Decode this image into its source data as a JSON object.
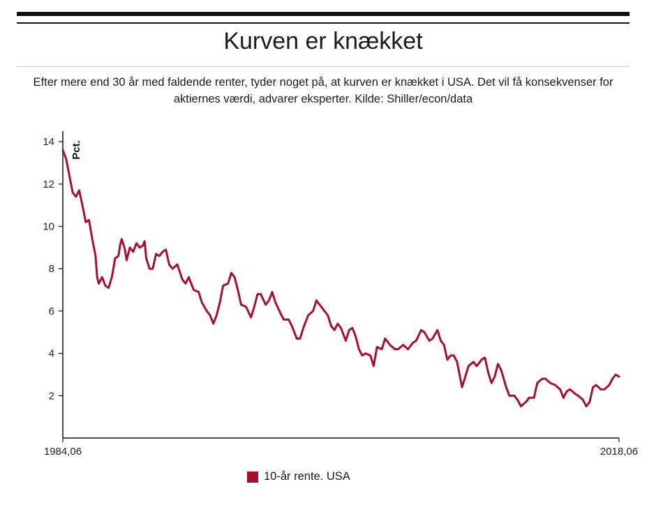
{
  "header": {
    "title": "Kurven er knækket",
    "subtitle": "Efter mere end 30 år med faldende renter, tyder noget på, at kurven er knækket i USA. Det vil få konsekvenser for aktiernes værdi, advarer eksperter. Kilde: Shiller/econ/data"
  },
  "colors": {
    "series": "#a6102e",
    "axis": "#111111"
  },
  "chart_data": {
    "type": "line",
    "title": "Kurven er knækket",
    "ylabel": "Pct.",
    "xlabel": "",
    "xlim": [
      1984.5,
      2018.5
    ],
    "ylim": [
      0,
      14.5
    ],
    "yticks": [
      2,
      4,
      6,
      8,
      10,
      12,
      14
    ],
    "xtick_labels": [
      {
        "x": 1984.5,
        "label": "1984,06"
      },
      {
        "x": 2018.5,
        "label": "2018,06"
      }
    ],
    "legend": "bottom-center",
    "series": [
      {
        "name": "10-år rente. USA",
        "points": [
          [
            1984.5,
            13.6
          ],
          [
            1984.7,
            13.2
          ],
          [
            1984.9,
            12.4
          ],
          [
            1985.1,
            11.6
          ],
          [
            1985.3,
            11.4
          ],
          [
            1985.5,
            11.7
          ],
          [
            1985.7,
            11.0
          ],
          [
            1985.9,
            10.2
          ],
          [
            1986.1,
            10.3
          ],
          [
            1986.3,
            9.4
          ],
          [
            1986.5,
            8.6
          ],
          [
            1986.6,
            7.6
          ],
          [
            1986.7,
            7.3
          ],
          [
            1986.9,
            7.6
          ],
          [
            1987.1,
            7.2
          ],
          [
            1987.3,
            7.1
          ],
          [
            1987.5,
            7.6
          ],
          [
            1987.7,
            8.5
          ],
          [
            1987.9,
            8.6
          ],
          [
            1988.0,
            9.1
          ],
          [
            1988.1,
            9.4
          ],
          [
            1988.3,
            8.9
          ],
          [
            1988.4,
            8.4
          ],
          [
            1988.6,
            9.0
          ],
          [
            1988.8,
            8.8
          ],
          [
            1989.0,
            9.2
          ],
          [
            1989.2,
            9.0
          ],
          [
            1989.4,
            9.1
          ],
          [
            1989.5,
            9.3
          ],
          [
            1989.6,
            8.5
          ],
          [
            1989.8,
            8.0
          ],
          [
            1990.0,
            8.0
          ],
          [
            1990.2,
            8.7
          ],
          [
            1990.4,
            8.6
          ],
          [
            1990.6,
            8.8
          ],
          [
            1990.8,
            8.9
          ],
          [
            1991.0,
            8.2
          ],
          [
            1991.2,
            8.0
          ],
          [
            1991.5,
            8.2
          ],
          [
            1991.8,
            7.5
          ],
          [
            1992.0,
            7.3
          ],
          [
            1992.2,
            7.6
          ],
          [
            1992.5,
            7.0
          ],
          [
            1992.8,
            6.9
          ],
          [
            1993.0,
            6.4
          ],
          [
            1993.3,
            6.0
          ],
          [
            1993.5,
            5.8
          ],
          [
            1993.7,
            5.4
          ],
          [
            1993.9,
            5.8
          ],
          [
            1994.1,
            6.4
          ],
          [
            1994.3,
            7.2
          ],
          [
            1994.6,
            7.3
          ],
          [
            1994.8,
            7.8
          ],
          [
            1995.0,
            7.6
          ],
          [
            1995.2,
            7.0
          ],
          [
            1995.4,
            6.3
          ],
          [
            1995.7,
            6.2
          ],
          [
            1996.0,
            5.7
          ],
          [
            1996.2,
            6.2
          ],
          [
            1996.4,
            6.8
          ],
          [
            1996.6,
            6.8
          ],
          [
            1996.9,
            6.3
          ],
          [
            1997.1,
            6.5
          ],
          [
            1997.3,
            6.9
          ],
          [
            1997.5,
            6.4
          ],
          [
            1997.8,
            5.9
          ],
          [
            1998.0,
            5.6
          ],
          [
            1998.3,
            5.6
          ],
          [
            1998.5,
            5.3
          ],
          [
            1998.8,
            4.7
          ],
          [
            1999.0,
            4.7
          ],
          [
            1999.2,
            5.2
          ],
          [
            1999.5,
            5.8
          ],
          [
            1999.8,
            6.0
          ],
          [
            2000.0,
            6.5
          ],
          [
            2000.2,
            6.3
          ],
          [
            2000.4,
            6.1
          ],
          [
            2000.7,
            5.8
          ],
          [
            2000.9,
            5.3
          ],
          [
            2001.1,
            5.1
          ],
          [
            2001.3,
            5.4
          ],
          [
            2001.5,
            5.2
          ],
          [
            2001.8,
            4.6
          ],
          [
            2002.0,
            5.1
          ],
          [
            2002.2,
            5.2
          ],
          [
            2002.4,
            4.8
          ],
          [
            2002.6,
            4.2
          ],
          [
            2002.8,
            3.9
          ],
          [
            2003.0,
            4.0
          ],
          [
            2003.3,
            3.9
          ],
          [
            2003.5,
            3.4
          ],
          [
            2003.7,
            4.3
          ],
          [
            2004.0,
            4.2
          ],
          [
            2004.2,
            4.7
          ],
          [
            2004.5,
            4.4
          ],
          [
            2004.8,
            4.2
          ],
          [
            2005.0,
            4.2
          ],
          [
            2005.3,
            4.4
          ],
          [
            2005.6,
            4.2
          ],
          [
            2005.9,
            4.5
          ],
          [
            2006.1,
            4.6
          ],
          [
            2006.4,
            5.1
          ],
          [
            2006.6,
            5.0
          ],
          [
            2006.9,
            4.6
          ],
          [
            2007.1,
            4.7
          ],
          [
            2007.4,
            5.1
          ],
          [
            2007.6,
            4.6
          ],
          [
            2007.8,
            4.4
          ],
          [
            2008.0,
            3.7
          ],
          [
            2008.2,
            3.9
          ],
          [
            2008.4,
            3.9
          ],
          [
            2008.6,
            3.6
          ],
          [
            2008.9,
            2.4
          ],
          [
            2009.1,
            2.9
          ],
          [
            2009.3,
            3.4
          ],
          [
            2009.6,
            3.6
          ],
          [
            2009.8,
            3.4
          ],
          [
            2010.1,
            3.7
          ],
          [
            2010.3,
            3.8
          ],
          [
            2010.5,
            3.1
          ],
          [
            2010.7,
            2.6
          ],
          [
            2010.9,
            2.9
          ],
          [
            2011.1,
            3.5
          ],
          [
            2011.3,
            3.2
          ],
          [
            2011.6,
            2.4
          ],
          [
            2011.8,
            2.0
          ],
          [
            2012.1,
            2.0
          ],
          [
            2012.3,
            1.8
          ],
          [
            2012.5,
            1.5
          ],
          [
            2012.8,
            1.7
          ],
          [
            2013.0,
            1.9
          ],
          [
            2013.3,
            1.9
          ],
          [
            2013.5,
            2.6
          ],
          [
            2013.8,
            2.8
          ],
          [
            2014.0,
            2.8
          ],
          [
            2014.3,
            2.6
          ],
          [
            2014.6,
            2.5
          ],
          [
            2014.9,
            2.3
          ],
          [
            2015.1,
            1.9
          ],
          [
            2015.3,
            2.2
          ],
          [
            2015.5,
            2.3
          ],
          [
            2015.8,
            2.1
          ],
          [
            2016.0,
            2.0
          ],
          [
            2016.3,
            1.8
          ],
          [
            2016.5,
            1.5
          ],
          [
            2016.7,
            1.7
          ],
          [
            2016.9,
            2.4
          ],
          [
            2017.1,
            2.5
          ],
          [
            2017.4,
            2.3
          ],
          [
            2017.6,
            2.3
          ],
          [
            2017.9,
            2.5
          ],
          [
            2018.1,
            2.8
          ],
          [
            2018.3,
            3.0
          ],
          [
            2018.5,
            2.9
          ]
        ]
      }
    ]
  }
}
